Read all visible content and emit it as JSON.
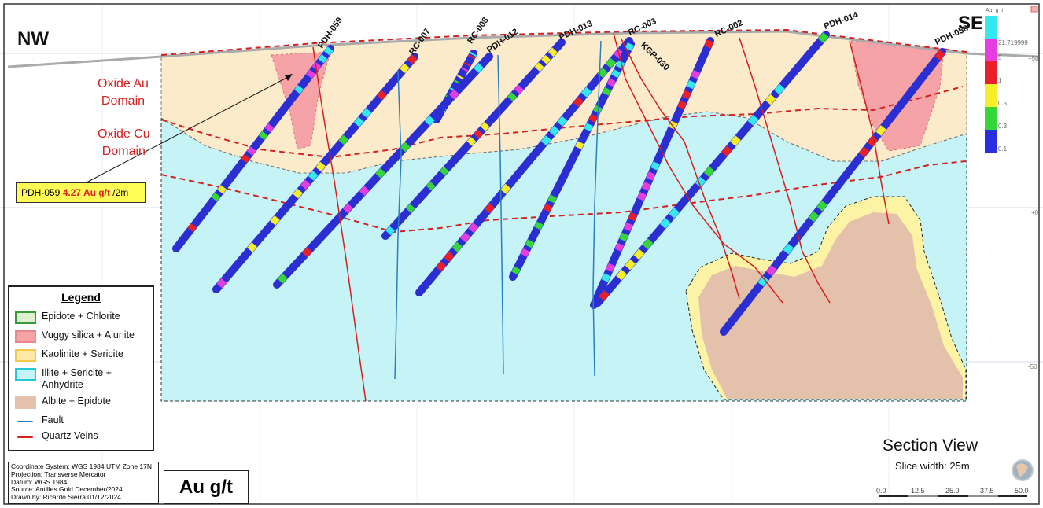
{
  "corners": {
    "left": "NW",
    "right": "SE"
  },
  "domains": [
    {
      "line1": "Oxide Au",
      "line2": "Domain"
    },
    {
      "line1": "Oxide Cu",
      "line2": "Domain"
    }
  ],
  "drillholes": [
    "PDH-059",
    "RC-007",
    "RC-008",
    "PDH-012",
    "PDH-013",
    "RC-003",
    "KGP-030",
    "RC-002",
    "PDH-014",
    "PDH-058"
  ],
  "callout": {
    "hole": "PDH-059",
    "value": "4.27 Au g/t",
    "suffix": "/2m"
  },
  "legend": {
    "title": "Legend",
    "items": [
      {
        "label": "Epidote + Chlorite",
        "fill": "#dff0cf",
        "stroke": "#3a9a3a",
        "kind": "box"
      },
      {
        "label": "Vuggy silica + Alunite",
        "fill": "#f6a3a7",
        "stroke": "#e8888c",
        "kind": "box"
      },
      {
        "label": "Kaolinite + Sericite",
        "fill": "#fde8a6",
        "stroke": "#f2c94b",
        "kind": "box"
      },
      {
        "label": "Illite + Sericite +",
        "label2": "Anhydrite",
        "fill": "#c6f3f5",
        "stroke": "#23c7d6",
        "kind": "box"
      },
      {
        "label": "Albite + Epidote",
        "fill": "#e3c1aa",
        "stroke": "#e3c1aa",
        "kind": "box"
      },
      {
        "label": "Fault",
        "stroke": "#2a7fbf",
        "kind": "line"
      },
      {
        "label": "Quartz Veins",
        "stroke": "#d42020",
        "kind": "line"
      }
    ]
  },
  "colorbar": {
    "title": "Au_g_t",
    "stops": [
      {
        "label": "21.719999",
        "color": "#33e8ef"
      },
      {
        "label": "5",
        "color": "#e53de0"
      },
      {
        "label": "1",
        "color": "#e8202a"
      },
      {
        "label": "0.5",
        "color": "#f5ee2a"
      },
      {
        "label": "0.3",
        "color": "#35d63a"
      },
      {
        "label": "0.1",
        "color": "#2a2ee0"
      }
    ]
  },
  "elevations": [
    "+50",
    "+0",
    "-50"
  ],
  "meta": [
    "Coordinate System: WGS 1984 UTM Zone 17N",
    "Projection: Transverse Mercator",
    "Datum: WGS 1984",
    "Source: Antilles Gold  December/2024",
    "Drawn by: Ricardo Sierra 01/12/2024"
  ],
  "unit_label": "Au g/t",
  "view": {
    "title": "Section View",
    "slice": "Slice width: 25m"
  },
  "scale_ticks": [
    "0.0",
    "12.5",
    "25.0",
    "37.5",
    "50.0"
  ],
  "colors": {
    "domain_line": "#d42020",
    "fault": "#2a7fbf",
    "hole_body": "#2b2fd1"
  }
}
